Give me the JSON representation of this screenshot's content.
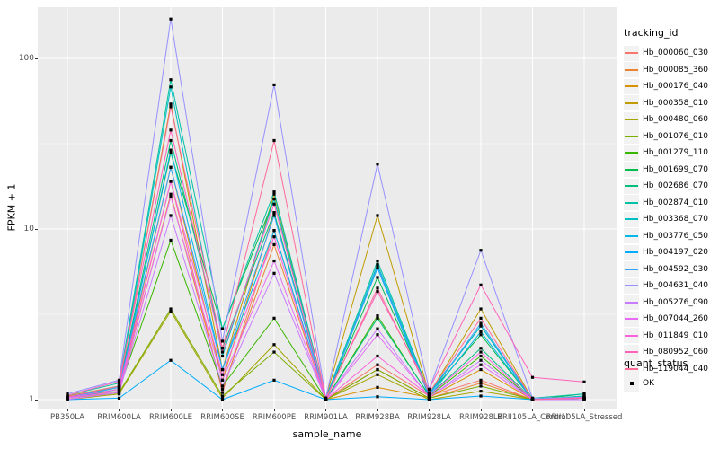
{
  "chart_data": {
    "type": "line",
    "title": "",
    "xlabel": "sample_name",
    "ylabel": "FPKM + 1",
    "y_scale": "log10",
    "y_ticks": [
      1,
      10,
      100
    ],
    "ylim": [
      1,
      200
    ],
    "grid": true,
    "legend_position": "right",
    "legend_title": "tracking_id",
    "x_categories": [
      "PB350LA",
      "RRIM600LA",
      "RRIM600LE",
      "RRIM600SE",
      "RRIM600PE",
      "RRIM901LA",
      "RRIM928BA",
      "RRIM928LA",
      "RRIM928LE",
      "RRII105LA_Control",
      "RRII105LA_Stressed"
    ],
    "series": [
      {
        "name": "Hb_000060_030",
        "color": "#F8766D",
        "values": [
          1.02,
          1.1,
          19,
          1.1,
          9.8,
          1.0,
          1.6,
          1.05,
          1.3,
          1.0,
          1.02
        ]
      },
      {
        "name": "Hb_000085_360",
        "color": "#EA8331",
        "values": [
          1.0,
          1.08,
          16,
          1.15,
          8.1,
          1.0,
          1.5,
          1.02,
          1.25,
          1.0,
          1.0
        ]
      },
      {
        "name": "Hb_000176_040",
        "color": "#D89000",
        "values": [
          1.03,
          1.12,
          23,
          1.3,
          12.4,
          1.0,
          1.18,
          1.03,
          1.5,
          1.0,
          1.02
        ]
      },
      {
        "name": "Hb_000358_010",
        "color": "#C09B00",
        "values": [
          1.05,
          1.2,
          54,
          1.5,
          16,
          1.02,
          12,
          1.08,
          3.4,
          1.0,
          1.03
        ]
      },
      {
        "name": "Hb_000480_060",
        "color": "#A3A500",
        "values": [
          1.0,
          1.08,
          3.3,
          1.02,
          2.1,
          1.0,
          1.4,
          1.0,
          1.12,
          1.0,
          1.0
        ]
      },
      {
        "name": "Hb_001076_010",
        "color": "#7CAE00",
        "values": [
          1.0,
          1.1,
          3.4,
          1.05,
          1.9,
          1.0,
          1.5,
          1.02,
          1.2,
          1.0,
          1.0
        ]
      },
      {
        "name": "Hb_001279_110",
        "color": "#39B600",
        "values": [
          1.02,
          1.15,
          8.6,
          1.2,
          3.0,
          1.0,
          3.1,
          1.05,
          1.8,
          1.0,
          1.02
        ]
      },
      {
        "name": "Hb_001699_070",
        "color": "#00BB4E",
        "values": [
          1.03,
          1.2,
          28,
          2.6,
          15,
          1.0,
          5.2,
          1.08,
          2.4,
          1.0,
          1.08
        ]
      },
      {
        "name": "Hb_002686_070",
        "color": "#00BF7D",
        "values": [
          1.02,
          1.18,
          33,
          2.0,
          12.5,
          1.0,
          3.0,
          1.06,
          2.0,
          1.0,
          1.05
        ]
      },
      {
        "name": "Hb_002874_010",
        "color": "#00C1A3",
        "values": [
          1.06,
          1.25,
          75,
          2.6,
          16.5,
          1.02,
          6.5,
          1.1,
          2.7,
          1.02,
          1.08
        ]
      },
      {
        "name": "Hb_003368_070",
        "color": "#00BFC4",
        "values": [
          1.04,
          1.2,
          68,
          1.8,
          15,
          1.0,
          6.2,
          1.08,
          2.7,
          1.0,
          1.05
        ]
      },
      {
        "name": "Hb_003776_050",
        "color": "#00B8E7",
        "values": [
          1.02,
          1.15,
          29,
          1.5,
          9.8,
          1.0,
          5.9,
          1.04,
          2.5,
          1.0,
          1.02
        ]
      },
      {
        "name": "Hb_004197_020",
        "color": "#00ACFC",
        "values": [
          1.0,
          1.02,
          1.7,
          1.0,
          1.3,
          1.0,
          1.04,
          1.0,
          1.05,
          1.0,
          1.0
        ]
      },
      {
        "name": "Hb_004592_030",
        "color": "#35A2FF",
        "values": [
          1.03,
          1.18,
          23,
          1.5,
          12,
          1.0,
          6.0,
          1.06,
          2.8,
          1.0,
          1.02
        ]
      },
      {
        "name": "Hb_004631_040",
        "color": "#9590FF",
        "values": [
          1.08,
          1.3,
          170,
          2.2,
          70,
          1.02,
          24,
          1.15,
          7.5,
          1.02,
          1.03
        ]
      },
      {
        "name": "Hb_005276_090",
        "color": "#C77CFF",
        "values": [
          1.0,
          1.1,
          12,
          1.2,
          5.5,
          1.0,
          2.6,
          1.03,
          1.7,
          1.0,
          1.0
        ]
      },
      {
        "name": "Hb_007044_260",
        "color": "#E76BF3",
        "values": [
          1.02,
          1.12,
          15.5,
          1.3,
          6.5,
          1.0,
          2.4,
          1.04,
          1.6,
          1.0,
          1.02
        ]
      },
      {
        "name": "Hb_011849_010",
        "color": "#FA62DB",
        "values": [
          1.03,
          1.15,
          19,
          1.4,
          9.0,
          1.0,
          1.8,
          1.06,
          1.9,
          1.0,
          1.03
        ]
      },
      {
        "name": "Hb_080952_060",
        "color": "#FF62BC",
        "values": [
          1.06,
          1.28,
          38,
          1.9,
          14,
          1.02,
          4.3,
          1.15,
          4.7,
          1.35,
          1.27
        ]
      },
      {
        "name": "Hb_119044_040",
        "color": "#FF6A98",
        "values": [
          1.04,
          1.2,
          52,
          2.0,
          33,
          1.0,
          4.5,
          1.1,
          3.0,
          1.0,
          1.02
        ]
      }
    ],
    "point_legend": {
      "title": "quant_status",
      "label": "OK",
      "symbol": "black-square",
      "color": "#000000"
    }
  },
  "colors": {
    "panel_bg": "#EBEBEB",
    "grid_major": "#FFFFFF",
    "grid_minor": "#FFFFFF",
    "point": "#000000",
    "legend_key_bg": "#F2F2F2",
    "tick_text": "#4D4D4D"
  }
}
